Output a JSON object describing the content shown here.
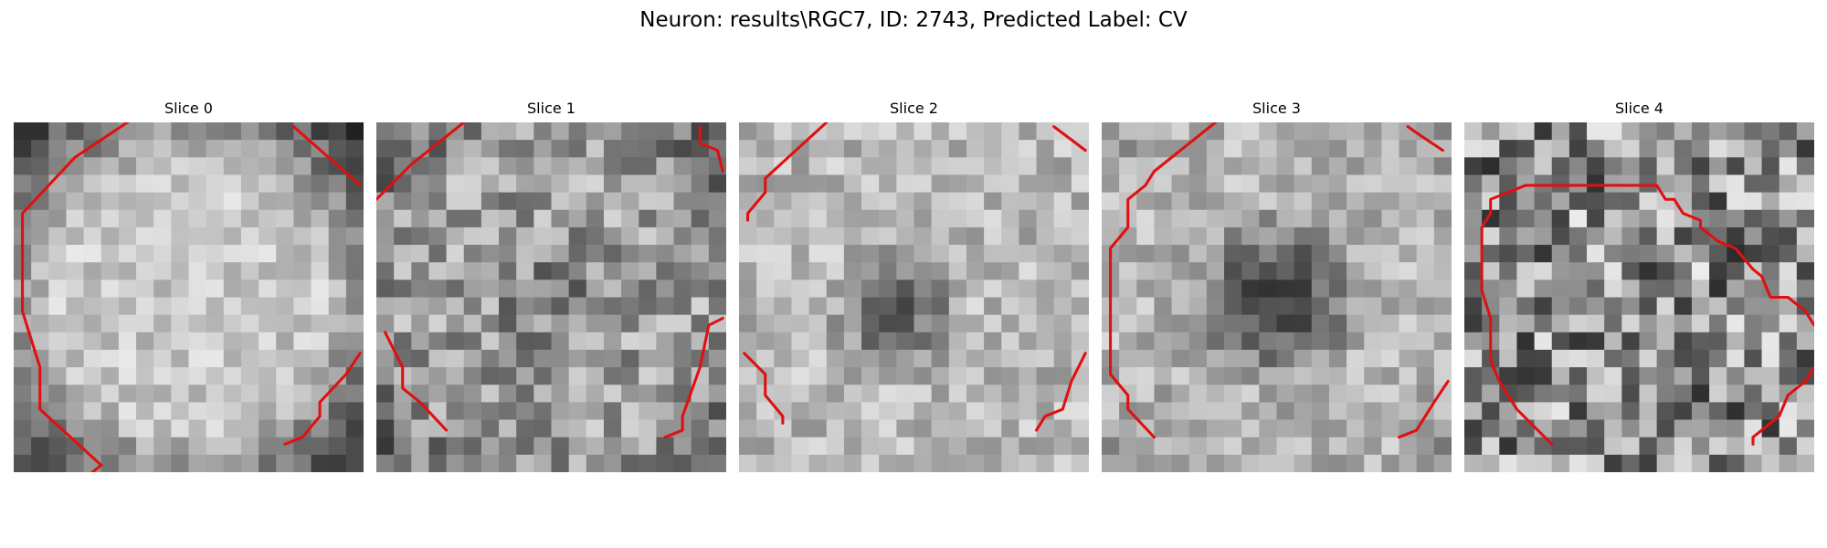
{
  "title": "Neuron: results\\RGC7, ID: 2743, Predicted Label: CV",
  "contour_color": "#e01010",
  "panels": [
    {
      "label": "Slice 0",
      "pattern": "bright-disc",
      "contour_segments": [
        [
          [
            6.5,
            0
          ],
          [
            3.5,
            2.5
          ],
          [
            0.5,
            6.5
          ],
          [
            0.5,
            13.5
          ],
          [
            1.5,
            17.5
          ],
          [
            1.5,
            20.5
          ],
          [
            5,
            24.5
          ],
          [
            4.5,
            25
          ]
        ],
        [
          [
            16,
            0.3
          ],
          [
            18,
            2.5
          ],
          [
            19.8,
            4.5
          ]
        ],
        [
          [
            19.8,
            16.5
          ],
          [
            19,
            18
          ],
          [
            17.5,
            20
          ],
          [
            17.5,
            21
          ],
          [
            16.5,
            22.5
          ],
          [
            15.5,
            23
          ]
        ]
      ]
    },
    {
      "label": "Slice 1",
      "pattern": "dim-disc",
      "contour_segments": [
        [
          [
            5,
            0
          ],
          [
            2,
            3
          ],
          [
            0,
            5.5
          ]
        ],
        [
          [
            18.5,
            0.3
          ],
          [
            18.5,
            1.5
          ],
          [
            19.5,
            2
          ],
          [
            19.8,
            3.5
          ]
        ],
        [
          [
            0.5,
            15
          ],
          [
            1.5,
            17.5
          ],
          [
            1.5,
            19
          ],
          [
            2.5,
            20
          ],
          [
            4,
            22
          ]
        ],
        [
          [
            19.8,
            14
          ],
          [
            19,
            14.5
          ],
          [
            18.5,
            17.5
          ],
          [
            17.5,
            21
          ],
          [
            17.5,
            22
          ],
          [
            16.5,
            22.5
          ]
        ]
      ]
    },
    {
      "label": "Slice 2",
      "pattern": "dark-center",
      "contour_segments": [
        [
          [
            5,
            0
          ],
          [
            1.5,
            4
          ],
          [
            1.5,
            5
          ],
          [
            0.5,
            6.5
          ],
          [
            0.5,
            7
          ]
        ],
        [
          [
            18,
            0.3
          ],
          [
            19.8,
            2
          ]
        ],
        [
          [
            0.3,
            16.5
          ],
          [
            1.5,
            18
          ],
          [
            1.5,
            19.5
          ],
          [
            2.5,
            21
          ],
          [
            2.5,
            21.5
          ]
        ],
        [
          [
            19.8,
            16.5
          ],
          [
            19,
            18.5
          ],
          [
            18.5,
            20.5
          ],
          [
            17.5,
            21
          ],
          [
            17,
            22
          ]
        ]
      ]
    },
    {
      "label": "Slice 3",
      "pattern": "dark-core",
      "contour_segments": [
        [
          [
            6.5,
            0
          ],
          [
            3,
            3.5
          ],
          [
            2.5,
            4.5
          ],
          [
            1.5,
            5.5
          ],
          [
            1.5,
            7.5
          ],
          [
            0.5,
            9
          ],
          [
            0.5,
            18
          ],
          [
            1.5,
            19.5
          ],
          [
            1.5,
            20.5
          ],
          [
            3,
            22.5
          ]
        ],
        [
          [
            17.5,
            0.3
          ],
          [
            18.3,
            1
          ],
          [
            19.5,
            2
          ]
        ],
        [
          [
            19.8,
            18.5
          ],
          [
            19,
            20
          ],
          [
            18.5,
            21
          ],
          [
            18,
            22
          ],
          [
            17,
            22.5
          ]
        ]
      ]
    },
    {
      "label": "Slice 4",
      "pattern": "noisy",
      "contour_segments": [
        [
          [
            5,
            23
          ],
          [
            3,
            20.5
          ],
          [
            2,
            18.5
          ],
          [
            1.5,
            17
          ],
          [
            1.5,
            14
          ],
          [
            1,
            12
          ],
          [
            1,
            7.5
          ],
          [
            1.5,
            6.5
          ],
          [
            1.5,
            5.5
          ],
          [
            3.5,
            4.5
          ],
          [
            11,
            4.5
          ],
          [
            11.5,
            5.5
          ],
          [
            12,
            5.5
          ],
          [
            12.5,
            6.5
          ],
          [
            13.5,
            7
          ],
          [
            13.5,
            7.5
          ],
          [
            14.5,
            8.5
          ],
          [
            15.5,
            9
          ],
          [
            16.5,
            10.5
          ],
          [
            17,
            11
          ],
          [
            17.5,
            12.5
          ],
          [
            18.5,
            12.5
          ],
          [
            19.5,
            13.5
          ],
          [
            20,
            14.5
          ]
        ],
        [
          [
            20,
            17.5
          ],
          [
            19.5,
            18.5
          ],
          [
            18.5,
            19.5
          ],
          [
            18,
            21
          ],
          [
            16.5,
            22.5
          ],
          [
            16.5,
            23
          ]
        ]
      ]
    }
  ]
}
